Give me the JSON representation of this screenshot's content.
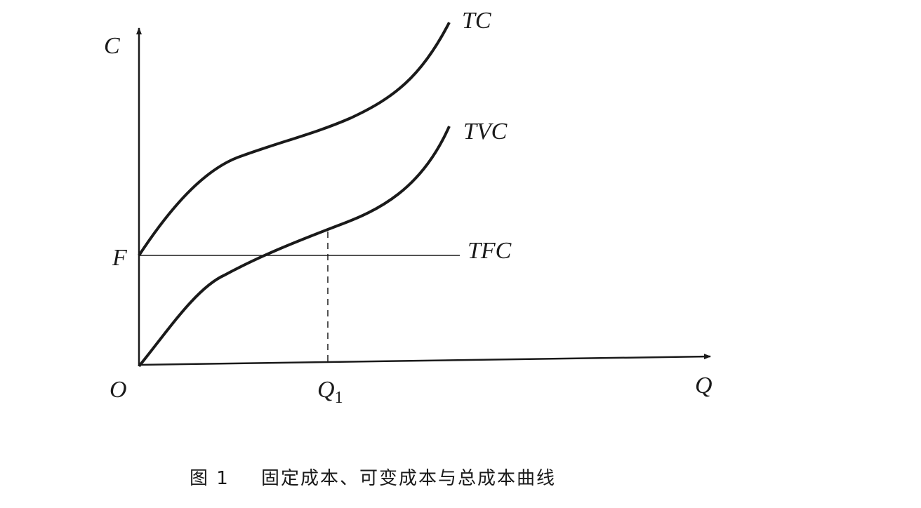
{
  "axes": {
    "y_label": "C",
    "x_label": "Q",
    "origin": "O",
    "fixed_cost_level": "F",
    "q1": {
      "text": "Q",
      "subscript": "1"
    }
  },
  "curves": {
    "tc": "TC",
    "tvc": "TVC",
    "tfc": "TFC"
  },
  "caption": {
    "number": "图 1",
    "text": "固定成本、可变成本与总成本曲线"
  }
}
